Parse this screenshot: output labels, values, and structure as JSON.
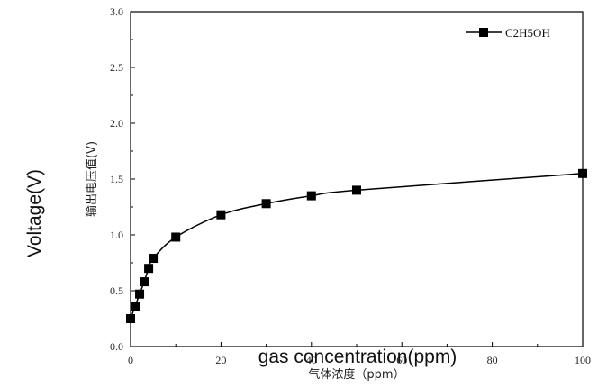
{
  "chart_data": {
    "type": "line",
    "xlabel": "气体浓度（ppm）",
    "ylabel": "输出电压值(V)",
    "overlay_ylabel": "Voltage(V)",
    "overlay_xlabel": "gas concentration(ppm)",
    "xlim": [
      0,
      100
    ],
    "ylim": [
      0,
      3.0
    ],
    "x_ticks": [
      "0",
      "20",
      "40",
      "60",
      "80",
      "100"
    ],
    "y_ticks": [
      "0.0",
      "0.5",
      "1.0",
      "1.5",
      "2.0",
      "2.5",
      "3.0"
    ],
    "grid": false,
    "legend_position": "top-right",
    "series": [
      {
        "name": "C2H5OH",
        "color": "#000000",
        "marker": "square",
        "x": [
          0,
          1,
          2,
          3,
          4,
          5,
          10,
          20,
          30,
          40,
          50,
          100
        ],
        "y": [
          0.25,
          0.36,
          0.47,
          0.58,
          0.7,
          0.79,
          0.98,
          1.18,
          1.28,
          1.35,
          1.4,
          1.55
        ]
      }
    ]
  }
}
